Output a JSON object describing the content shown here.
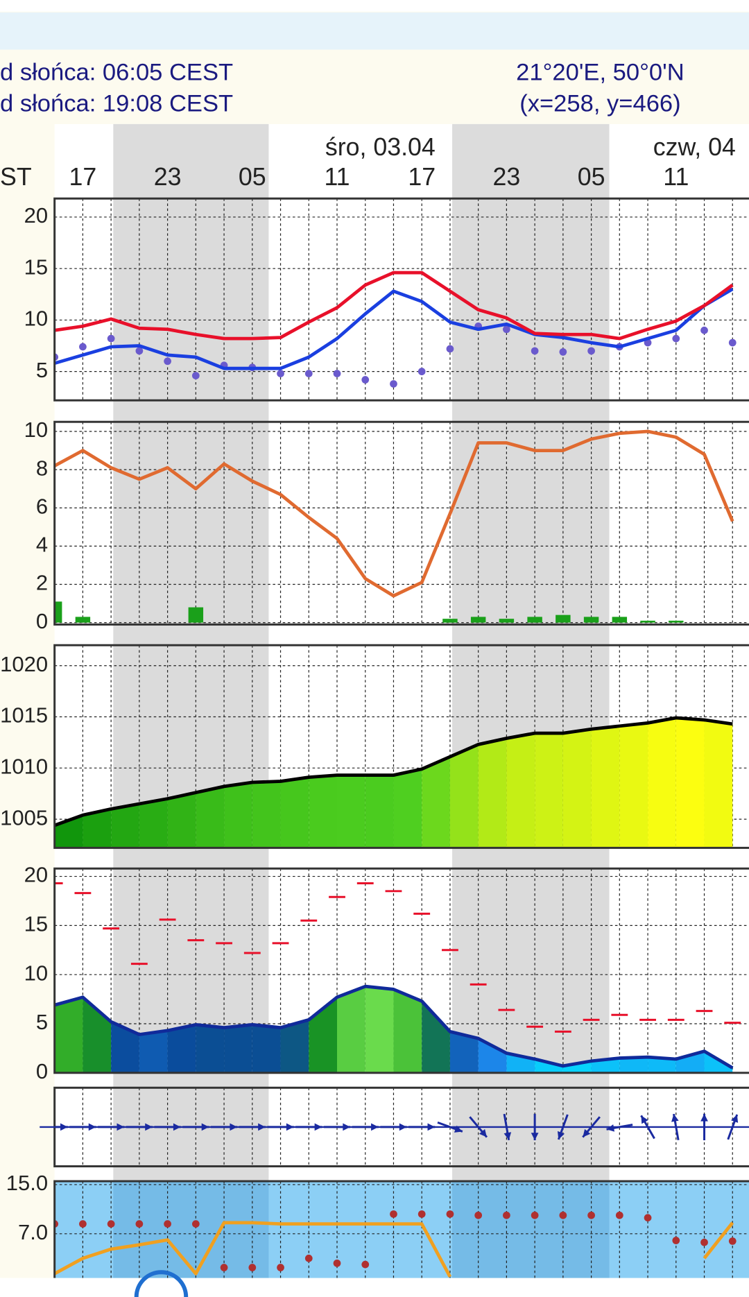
{
  "header": {
    "sunrise": "d słońca: 06:05 CEST",
    "sunset": "d słońca: 19:08 CEST",
    "coords": "21°20'E, 50°0'N",
    "grid_point": "(x=258,  y=466)",
    "tz": "ST",
    "day1": "śro, 03.04",
    "day2": "czw, 04"
  },
  "chart_data": [
    {
      "type": "line",
      "categories": [
        null,
        "17",
        null,
        null,
        "23",
        null,
        null,
        "05",
        null,
        null,
        "11",
        null,
        null,
        "17",
        null,
        null,
        "23",
        null,
        null,
        "05",
        null,
        null,
        "11",
        null,
        null
      ],
      "ylim": [
        2.2,
        21.8
      ],
      "yticks": [
        5,
        10,
        15,
        20
      ],
      "grid": true,
      "series": [
        {
          "style": "dots",
          "color": "#6a5acd",
          "values": [
            6.4,
            7.4,
            8.2,
            7.0,
            6.0,
            4.6,
            5.6,
            5.4,
            4.8,
            4.8,
            4.8,
            4.2,
            3.8,
            5.0,
            7.2,
            9.4,
            9.1,
            7.0,
            6.9,
            7.0,
            7.4,
            7.8,
            8.2,
            9.0,
            7.8
          ]
        },
        {
          "style": "line",
          "color": "#1a3fe0",
          "values": [
            5.8,
            6.6,
            7.4,
            7.5,
            6.6,
            6.4,
            5.3,
            5.3,
            5.3,
            6.4,
            8.2,
            10.6,
            12.8,
            11.8,
            9.8,
            9.1,
            9.6,
            8.6,
            8.3,
            7.8,
            7.4,
            8.2,
            9.0,
            11.4,
            13.0
          ]
        },
        {
          "style": "line",
          "color": "#e8102a",
          "values": [
            9.0,
            9.4,
            10.1,
            9.2,
            9.1,
            8.6,
            8.2,
            8.2,
            8.3,
            9.8,
            11.2,
            13.4,
            14.6,
            14.6,
            12.8,
            11.0,
            10.2,
            8.7,
            8.6,
            8.6,
            8.2,
            9.1,
            9.9,
            11.4,
            13.4
          ]
        }
      ]
    },
    {
      "type": "combo",
      "ylim": [
        -0.1,
        10.5
      ],
      "yticks": [
        0,
        2,
        4,
        6,
        8,
        10
      ],
      "grid": true,
      "series": [
        {
          "style": "bars",
          "color": "#1aa01a",
          "values": [
            1.1,
            0.3,
            0,
            0,
            0,
            0.8,
            0,
            0,
            0,
            0,
            0,
            0,
            0,
            0,
            0.2,
            0.3,
            0.2,
            0.3,
            0.4,
            0.3,
            0.3,
            0.1,
            0.1,
            0,
            0
          ]
        },
        {
          "style": "line",
          "color": "#e06a30",
          "values": [
            8.2,
            9.0,
            8.1,
            7.5,
            8.1,
            7.0,
            8.3,
            7.4,
            6.7,
            5.5,
            4.4,
            2.3,
            1.4,
            2.1,
            5.7,
            9.4,
            9.4,
            9.0,
            9.0,
            9.6,
            9.9,
            10.0,
            9.7,
            8.8,
            5.3
          ]
        }
      ]
    },
    {
      "type": "area",
      "ylim": [
        1002.2,
        1022
      ],
      "yticks": [
        1005,
        1010,
        1015,
        1020
      ],
      "grid": true,
      "series": [
        {
          "style": "area",
          "color": "#000000",
          "fill_colors": [
            "#0a900a",
            "#50d020",
            "#ffff10"
          ],
          "values": [
            1004.4,
            1005.4,
            1006.0,
            1006.5,
            1007.0,
            1007.6,
            1008.2,
            1008.6,
            1008.7,
            1009.1,
            1009.3,
            1009.3,
            1009.3,
            1009.9,
            1011.1,
            1012.3,
            1012.9,
            1013.4,
            1013.4,
            1013.8,
            1014.1,
            1014.4,
            1014.9,
            1014.7,
            1014.3
          ]
        }
      ]
    },
    {
      "type": "combo",
      "ylim": [
        0,
        20.8
      ],
      "yticks": [
        0,
        5,
        10,
        15,
        20
      ],
      "grid": true,
      "series": [
        {
          "style": "area",
          "color": "#102a9a",
          "fill_colors": [
            "#00e5ff",
            "#1e8cf0",
            "#0a4a9a",
            "#1a9a1a",
            "#70e050"
          ],
          "values": [
            6.9,
            7.7,
            5.2,
            3.9,
            4.3,
            4.9,
            4.6,
            4.9,
            4.6,
            5.4,
            7.7,
            8.8,
            8.5,
            7.3,
            4.2,
            3.5,
            2.0,
            1.4,
            0.7,
            1.2,
            1.5,
            1.6,
            1.4,
            2.2,
            0.5
          ]
        },
        {
          "style": "dashes",
          "color": "#e8102a",
          "values": [
            19.3,
            18.3,
            14.7,
            11.1,
            15.6,
            13.5,
            13.2,
            12.2,
            13.2,
            15.5,
            17.9,
            19.3,
            18.5,
            16.2,
            12.5,
            9.0,
            6.4,
            4.7,
            4.2,
            5.4,
            5.9,
            5.4,
            5.4,
            6.3,
            5.1
          ]
        }
      ]
    },
    {
      "type": "arrows",
      "color": "#1a2aa0",
      "values": [
        270,
        270,
        270,
        270,
        270,
        270,
        270,
        270,
        270,
        270,
        270,
        270,
        270,
        270,
        290,
        320,
        350,
        0,
        20,
        40,
        80,
        150,
        170,
        180,
        200
      ]
    },
    {
      "type": "combo",
      "ylim": [
        -0.6,
        15.55
      ],
      "yticks": [
        {
          "value": 7,
          "label": "7.0"
        },
        {
          "value": 15,
          "label": "15.0"
        }
      ],
      "grid": true,
      "background": "#8ccff5",
      "series": [
        {
          "style": "line",
          "color": "#f0a020",
          "values": [
            0.5,
            3.0,
            4.5,
            5.2,
            6.0,
            0.5,
            8.8,
            8.8,
            8.6,
            8.6,
            8.6,
            8.6,
            8.6,
            8.6,
            0,
            null,
            null,
            null,
            null,
            null,
            null,
            null,
            null,
            3.0,
            8.8
          ]
        },
        {
          "style": "dots",
          "color": "#b03030",
          "values": [
            8.6,
            8.6,
            8.6,
            8.6,
            8.6,
            8.6,
            1.5,
            1.5,
            1.5,
            3.0,
            2.2,
            2.0,
            10.2,
            10.2,
            10.2,
            10.0,
            10.0,
            10.0,
            10.0,
            10.0,
            10.0,
            9.6,
            5.9,
            5.6,
            5.8
          ]
        }
      ]
    }
  ]
}
